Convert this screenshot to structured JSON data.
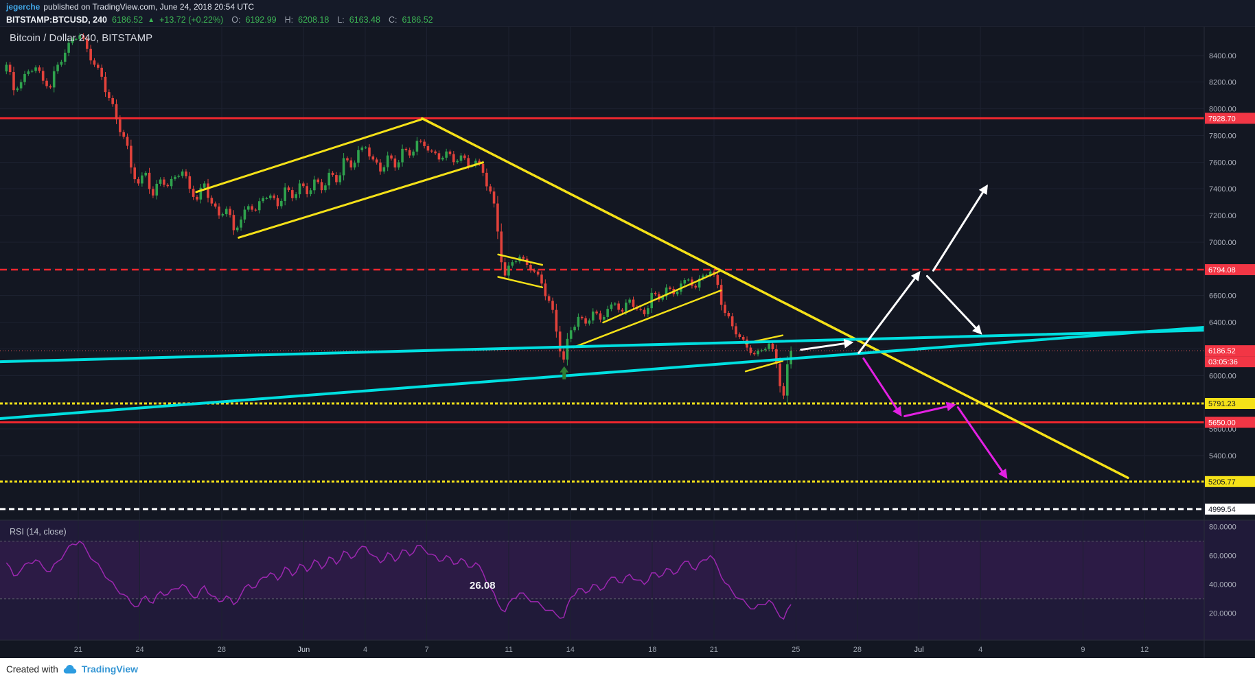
{
  "header": {
    "author": "jegerche",
    "published": "published on TradingView.com, June 24, 2018 20:54 UTC"
  },
  "symbol_bar": {
    "symbol": "BITSTAMP:BTCUSD, 240",
    "last": "6186.52",
    "up_arrow": "▲",
    "change": "+13.72 (+0.22%)",
    "o_label": "O:",
    "o_value": "6192.99",
    "h_label": "H:",
    "h_value": "6208.18",
    "l_label": "L:",
    "l_value": "6163.48",
    "c_label": "C:",
    "c_value": "6186.52"
  },
  "chart": {
    "title": "Bitcoin / Dollar 240, BITSTAMP"
  },
  "rsi_pane": {
    "legend": "RSI (14, close)",
    "value_label": "26.08"
  },
  "footer": {
    "created_with": "Created with",
    "brand": "TradingView"
  },
  "colors": {
    "background": "#131722",
    "grid": "#1c2130",
    "separator": "#2a2e39",
    "candle_up": "#2fa24d",
    "candle_down": "#e2423b",
    "yellow": "#f5e118",
    "cyan": "#00dfe0",
    "red_line": "#f0272e",
    "red_tag": "#f23645",
    "magenta": "#e320e3",
    "white": "#ffffff",
    "rsi_line": "#9c27b0",
    "rsi_bg": "#201a39",
    "rsi_band": "rgba(156,39,176,0.10)",
    "axis_text": "#aeb2bd",
    "current_dotted": "#e45a5a"
  },
  "chart_data": {
    "type": "candlestick",
    "exchange": "BITSTAMP",
    "pair": "BTCUSD",
    "interval_minutes": 240,
    "title": "Bitcoin / Dollar 240, BITSTAMP",
    "last_ohlc": {
      "open": 6192.99,
      "high": 6208.18,
      "low": 6163.48,
      "close": 6186.52
    },
    "change": "+13.72 (+0.22%)",
    "indicator": "RSI (14, close)",
    "rsi_last": 26.08,
    "open_start": 8280,
    "candle_span_days": 38.26,
    "close_anchors": [
      8330,
      8140,
      8200,
      8280,
      8310,
      8210,
      8160,
      8330,
      8420,
      8520,
      8550,
      8450,
      8330,
      8240,
      8080,
      7920,
      7790,
      7560,
      7440,
      7520,
      7350,
      7470,
      7420,
      7490,
      7530,
      7400,
      7320,
      7440,
      7290,
      7200,
      7250,
      7090,
      7170,
      7270,
      7240,
      7330,
      7350,
      7270,
      7410,
      7330,
      7440,
      7360,
      7470,
      7390,
      7520,
      7450,
      7630,
      7560,
      7690,
      7710,
      7620,
      7530,
      7650,
      7560,
      7700,
      7650,
      7760,
      7720,
      7680,
      7620,
      7680,
      7600,
      7650,
      7570,
      7610,
      7520,
      7380,
      7080,
      6750,
      6850,
      6890,
      6830,
      6780,
      6690,
      6560,
      6330,
      6120,
      6340,
      6440,
      6390,
      6480,
      6420,
      6500,
      6540,
      6480,
      6570,
      6500,
      6460,
      6620,
      6570,
      6660,
      6610,
      6690,
      6720,
      6660,
      6750,
      6780,
      6680,
      6470,
      6370,
      6290,
      6210,
      6160,
      6190,
      6240,
      6090,
      5850,
      6186.52
    ],
    "rsi_anchors": [
      55,
      46,
      50,
      55,
      57,
      52,
      49,
      56,
      62,
      68,
      70,
      63,
      56,
      50,
      43,
      37,
      33,
      27,
      25,
      32,
      27,
      35,
      33,
      37,
      40,
      34,
      31,
      39,
      32,
      28,
      32,
      26,
      33,
      40,
      38,
      45,
      48,
      43,
      52,
      46,
      54,
      49,
      57,
      51,
      59,
      54,
      63,
      58,
      64,
      66,
      60,
      55,
      62,
      56,
      64,
      60,
      67,
      64,
      61,
      56,
      60,
      54,
      58,
      52,
      55,
      48,
      38,
      27,
      21,
      30,
      34,
      31,
      28,
      25,
      22,
      19,
      17,
      31,
      37,
      34,
      40,
      36,
      42,
      45,
      41,
      47,
      43,
      40,
      48,
      45,
      51,
      47,
      53,
      56,
      50,
      57,
      60,
      52,
      41,
      35,
      30,
      26,
      23,
      26,
      29,
      22,
      16,
      26.08
    ],
    "levels": [
      {
        "price": 7928.7,
        "label": "7928.70",
        "style": "solid",
        "color": "#f0272e",
        "thickness": 3,
        "tag_bg": "#f23645",
        "tag_fg": "#ffffff"
      },
      {
        "price": 6794.08,
        "label": "6794.08",
        "style": "dashed",
        "color": "#f0272e",
        "thickness": 2.5,
        "dash": "10 6",
        "tag_bg": "#f23645",
        "tag_fg": "#ffffff"
      },
      {
        "price": 5791.23,
        "label": "5791.23",
        "style": "dashed",
        "color": "#f5e118",
        "thickness": 3,
        "dash": "4 3",
        "tag_bg": "#f5e118",
        "tag_fg": "#131722"
      },
      {
        "price": 5650.0,
        "label": "5650.00",
        "style": "solid",
        "color": "#f0272e",
        "thickness": 3,
        "tag_bg": "#f23645",
        "tag_fg": "#ffffff"
      },
      {
        "price": 5205.77,
        "label": "5205.77",
        "style": "dashed",
        "color": "#f5e118",
        "thickness": 3,
        "dash": "4 3",
        "tag_bg": "#f5e118",
        "tag_fg": "#131722"
      },
      {
        "price": 4999.54,
        "label": "4999.54",
        "style": "dashed",
        "color": "#ffffff",
        "thickness": 3,
        "dash": "8 5",
        "tag_bg": "#ffffff",
        "tag_fg": "#131722"
      }
    ],
    "current_price": {
      "price": 6186.52,
      "label": "6186.52",
      "countdown": "03:05:36"
    },
    "trendlines": [
      {
        "name": "yellow-channel-upper",
        "d1": 9.26,
        "p1": 7376,
        "d2": 20.27,
        "p2": 7922,
        "color": "#f5e118",
        "w": 3
      },
      {
        "name": "yellow-channel-lower",
        "d1": 11.33,
        "p1": 7034,
        "d2": 23.24,
        "p2": 7598,
        "color": "#f5e118",
        "w": 3
      },
      {
        "name": "yellow-downtrend-line",
        "d1": 20.27,
        "p1": 7928,
        "d2": 54.69,
        "p2": 5234,
        "color": "#f5e118",
        "w": 3.5
      },
      {
        "name": "yellow-flag-a-upper",
        "d1": 23.98,
        "p1": 6908,
        "d2": 26.13,
        "p2": 6830,
        "color": "#f5e118",
        "w": 2.5
      },
      {
        "name": "yellow-flag-a-lower",
        "d1": 23.98,
        "p1": 6740,
        "d2": 26.13,
        "p2": 6662,
        "color": "#f5e118",
        "w": 2.5
      },
      {
        "name": "yellow-wedge-lower",
        "d1": 27.66,
        "p1": 6212,
        "d2": 34.84,
        "p2": 6638,
        "color": "#f5e118",
        "w": 2.5
      },
      {
        "name": "yellow-wedge-upper",
        "d1": 29.1,
        "p1": 6398,
        "d2": 34.77,
        "p2": 6782,
        "color": "#f5e118",
        "w": 2.5
      },
      {
        "name": "yellow-flag-b-upper",
        "d1": 36.05,
        "p1": 6242,
        "d2": 37.85,
        "p2": 6302,
        "color": "#f5e118",
        "w": 2.5
      },
      {
        "name": "yellow-flag-b-lower",
        "d1": 36.05,
        "p1": 6032,
        "d2": 37.85,
        "p2": 6110,
        "color": "#f5e118",
        "w": 2.5
      },
      {
        "name": "cyan-trendline-upper",
        "d1": -0.31,
        "p1": 6104,
        "d2": 58.4,
        "p2": 6340,
        "color": "#00dfe0",
        "w": 4
      },
      {
        "name": "cyan-trendline-lower",
        "d1": -0.31,
        "p1": 5678,
        "d2": 58.4,
        "p2": 6362,
        "color": "#00dfe0",
        "w": 4
      }
    ],
    "arrows": [
      {
        "name": "white-projection-arrow-1",
        "d1": 38.75,
        "p1": 6194,
        "d2": 41.2,
        "p2": 6248,
        "color": "#ffffff"
      },
      {
        "name": "white-projection-arrow-2",
        "d1": 41.56,
        "p1": 6170,
        "d2": 44.5,
        "p2": 6770,
        "color": "#ffffff"
      },
      {
        "name": "white-projection-arrow-3",
        "d1": 44.9,
        "p1": 6746,
        "d2": 47.5,
        "p2": 6320,
        "color": "#ffffff"
      },
      {
        "name": "white-projection-arrow-4",
        "d1": 45.2,
        "p1": 6788,
        "d2": 47.8,
        "p2": 7418,
        "color": "#ffffff"
      },
      {
        "name": "magenta-projection-arrow-1",
        "d1": 41.8,
        "p1": 6128,
        "d2": 43.6,
        "p2": 5708,
        "color": "#e320e3"
      },
      {
        "name": "magenta-projection-arrow-2",
        "d1": 43.8,
        "p1": 5696,
        "d2": 46.2,
        "p2": 5780,
        "color": "#e320e3"
      },
      {
        "name": "magenta-projection-arrow-3",
        "d1": 46.4,
        "p1": 5762,
        "d2": 48.75,
        "p2": 5240,
        "color": "#e320e3"
      }
    ],
    "marker": {
      "name": "green-up-arrow-marker",
      "day": 27.2,
      "price": 6070,
      "color": "#2e7d32"
    },
    "price_axis_labels": [
      "8400.00",
      "8200.00",
      "8000.00",
      "7800.00",
      "7600.00",
      "7400.00",
      "7200.00",
      "7000.00",
      "6600.00",
      "6400.00",
      "6000.00",
      "5600.00",
      "5400.00"
    ],
    "rsi_axis_labels": [
      {
        "text": "80.0000",
        "value": 80
      },
      {
        "text": "60.0000",
        "value": 60
      },
      {
        "text": "40.0000",
        "value": 40
      },
      {
        "text": "20.0000",
        "value": 20
      }
    ],
    "rsi_bands": [
      70,
      30
    ],
    "time_axis_labels": [
      {
        "label": "21",
        "day": 3.5
      },
      {
        "label": "24",
        "day": 6.5
      },
      {
        "label": "28",
        "day": 10.5
      },
      {
        "label": "Jun",
        "day": 14.5,
        "month": true
      },
      {
        "label": "4",
        "day": 17.5
      },
      {
        "label": "7",
        "day": 20.5
      },
      {
        "label": "11",
        "day": 24.5
      },
      {
        "label": "14",
        "day": 27.5
      },
      {
        "label": "18",
        "day": 31.5
      },
      {
        "label": "21",
        "day": 34.5
      },
      {
        "label": "25",
        "day": 38.5
      },
      {
        "label": "28",
        "day": 41.5
      },
      {
        "label": "Jul",
        "day": 44.5,
        "month": true
      },
      {
        "label": "4",
        "day": 47.5
      },
      {
        "label": "9",
        "day": 52.5
      },
      {
        "label": "12",
        "day": 55.5
      }
    ]
  }
}
